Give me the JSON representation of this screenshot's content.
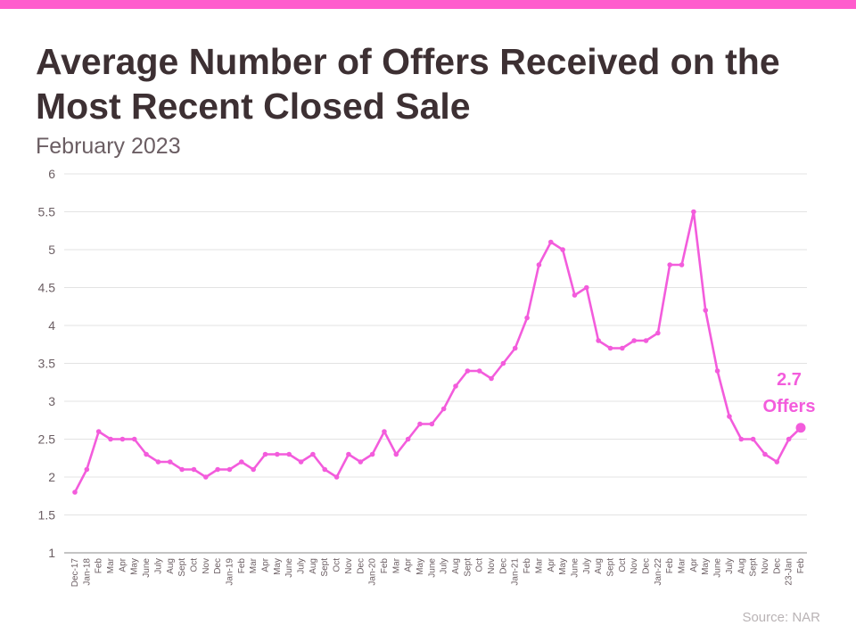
{
  "header": {
    "title": "Average Number of Offers Received on the Most Recent Closed Sale",
    "subtitle": "February 2023"
  },
  "footer": {
    "source": "Source: NAR"
  },
  "colors": {
    "accent": "#ff5ccd",
    "line": "#f35cdc",
    "title": "#3d3033"
  },
  "chart_data": {
    "type": "line",
    "title": "Average Number of Offers Received on the Most Recent Closed Sale",
    "subtitle": "February 2023",
    "xlabel": "",
    "ylabel": "",
    "ylim": [
      1,
      6
    ],
    "yticks": [
      "1",
      "1.5",
      "2",
      "2.5",
      "3",
      "3.5",
      "4",
      "4.5",
      "5",
      "5.5",
      "6"
    ],
    "grid": true,
    "legend": "none",
    "categories": [
      "Dec-17",
      "Jan-18",
      "Feb",
      "Mar",
      "Apr",
      "May",
      "June",
      "July",
      "Aug",
      "Sept",
      "Oct",
      "Nov",
      "Dec",
      "Jan-19",
      "Feb",
      "Mar",
      "Apr",
      "May",
      "June",
      "July",
      "Aug",
      "Sept",
      "Oct",
      "Nov",
      "Dec",
      "Jan-20",
      "Feb",
      "Mar",
      "Apr",
      "May",
      "June",
      "July",
      "Aug",
      "Sept",
      "Oct",
      "Nov",
      "Dec",
      "Jan-21",
      "Feb",
      "Mar",
      "Apr",
      "May",
      "June",
      "July",
      "Aug",
      "Sept",
      "Oct",
      "Nov",
      "Dec",
      "Jan-22",
      "Feb",
      "Mar",
      "Apr",
      "May",
      "June",
      "July",
      "Aug",
      "Sept",
      "Nov",
      "Dec",
      "23-Jan",
      "Feb"
    ],
    "values": [
      1.8,
      2.1,
      2.6,
      2.5,
      2.5,
      2.5,
      2.3,
      2.2,
      2.2,
      2.1,
      2.1,
      2.0,
      2.1,
      2.1,
      2.2,
      2.1,
      2.3,
      2.3,
      2.3,
      2.2,
      2.3,
      2.1,
      2.0,
      2.3,
      2.2,
      2.3,
      2.6,
      2.3,
      2.5,
      2.7,
      2.7,
      2.9,
      3.2,
      3.4,
      3.4,
      3.3,
      3.5,
      3.7,
      4.1,
      4.8,
      5.1,
      5.0,
      4.4,
      4.5,
      3.8,
      3.7,
      3.7,
      3.8,
      3.8,
      3.9,
      4.8,
      4.8,
      5.5,
      4.2,
      3.4,
      2.8,
      2.5,
      2.5,
      2.3,
      2.2,
      2.5,
      2.65
    ],
    "annotation": {
      "line1": "2.7",
      "line2": "Offers",
      "index": 61
    }
  }
}
